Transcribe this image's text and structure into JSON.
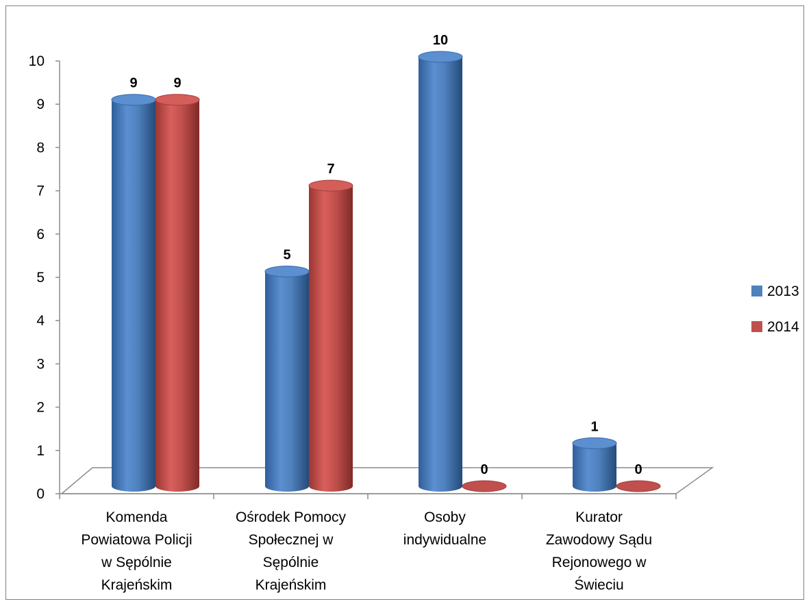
{
  "chart_data": {
    "type": "bar",
    "style": "3d-cylinder",
    "categories": [
      "Komenda Powiatowa Policji w Sępólnie Krajeńskim",
      "Ośrodek Pomocy Społecznej w Sępólnie Krajeńskim",
      "Osoby indywidualne",
      "Kurator Zawodowy Sądu Rejonowego w Świeciu"
    ],
    "category_lines": [
      [
        "Komenda",
        "Powiatowa Policji",
        "w Sępólnie",
        "Krajeńskim"
      ],
      [
        "Ośrodek Pomocy",
        "Społecznej w",
        "Sępólnie",
        "Krajeńskim"
      ],
      [
        "Osoby",
        "indywidualne"
      ],
      [
        "Kurator",
        "Zawodowy Sądu",
        "Rejonowego w",
        "Świeciu"
      ]
    ],
    "series": [
      {
        "name": "2013",
        "values": [
          9,
          5,
          10,
          1
        ],
        "color": "#4f81bd"
      },
      {
        "name": "2014",
        "values": [
          9,
          7,
          0,
          0
        ],
        "color": "#c0504d"
      }
    ],
    "yticks": [
      "0",
      "1",
      "2",
      "3",
      "4",
      "5",
      "6",
      "7",
      "8",
      "9",
      "10"
    ],
    "ylim": [
      0,
      10
    ],
    "data_labels": true,
    "legend": "right",
    "grid": false
  }
}
